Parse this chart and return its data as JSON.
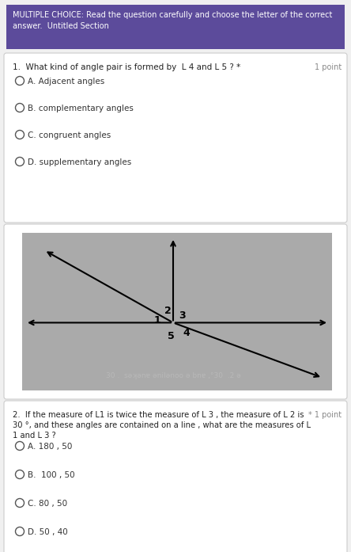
{
  "header_bg": "#5c4b9b",
  "header_text_color": "#ffffff",
  "body_bg": "#f0f0f0",
  "card_bg": "#ffffff",
  "border_color": "#cccccc",
  "q1_text": "1.  What kind of angle pair is formed by  L 4 and L 5 ? *",
  "q1_point": "1 point",
  "q1_options": [
    "A. Adjacent angles",
    "B. complementary angles",
    "C. congruent angles",
    "D. supplementary angles"
  ],
  "diagram_bg": "#aaaaaa",
  "q2_point": "* 1 point",
  "q2_options": [
    "A. 180 , 50",
    "B.  100 , 50",
    "C. 80 , 50",
    "D. 50 , 40"
  ],
  "text_color": "#222222",
  "option_text_color": "#333333",
  "circle_color": "#555555",
  "fig_width": 4.44,
  "fig_height": 6.97
}
